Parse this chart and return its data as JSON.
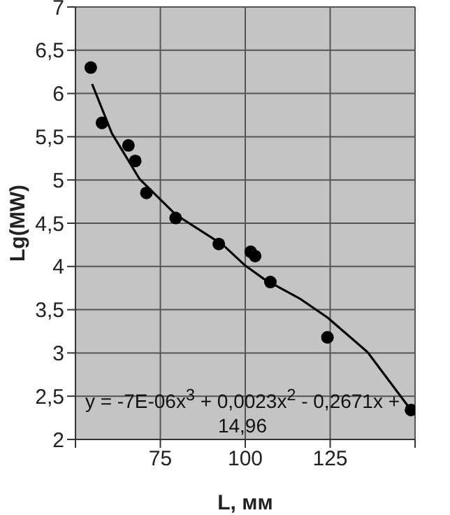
{
  "chart_data": {
    "type": "scatter",
    "xlabel": "L, мм",
    "ylabel": "Lg(MW)",
    "xlim": [
      50,
      150
    ],
    "xticks": [
      {
        "value": 50,
        "label": null
      },
      75,
      100,
      125,
      {
        "value": 150,
        "label": null
      }
    ],
    "ylim": [
      2,
      7
    ],
    "yticks": [
      2,
      {
        "value": 2.5,
        "label": "2,5"
      },
      3,
      {
        "value": 3.5,
        "label": "3,5"
      },
      4,
      {
        "value": 4.5,
        "label": "4,5"
      },
      5,
      {
        "value": 5.5,
        "label": "5,5"
      },
      6,
      {
        "value": 6.5,
        "label": "6,5"
      },
      7
    ],
    "grid": true,
    "series": [
      {
        "color": "#000000",
        "marker": "circle",
        "x": [
          54.5,
          57.8,
          65.6,
          67.6,
          70.9,
          79.5,
          92.2,
          101.6,
          102.9,
          107.4,
          124.2,
          148.8
        ],
        "values": [
          6.3,
          5.66,
          5.4,
          5.22,
          4.85,
          4.56,
          4.26,
          4.17,
          4.12,
          3.82,
          3.18,
          2.34
        ]
      },
      {
        "type": "line",
        "color": "#000000",
        "marker": "none",
        "x": [
          54.9,
          60.7,
          68.9,
          79.5,
          93.4,
          100,
          105.7,
          116,
          124.2,
          136,
          148.8
        ],
        "values": [
          6.11,
          5.54,
          5.01,
          4.6,
          4.25,
          4.01,
          3.85,
          3.63,
          3.41,
          3.01,
          2.34
        ]
      }
    ],
    "annotations": [
      "y = -7E-06x$^{3}$ + 0,0023x$^{2}$ - 0,2671x + 14,96"
    ]
  }
}
